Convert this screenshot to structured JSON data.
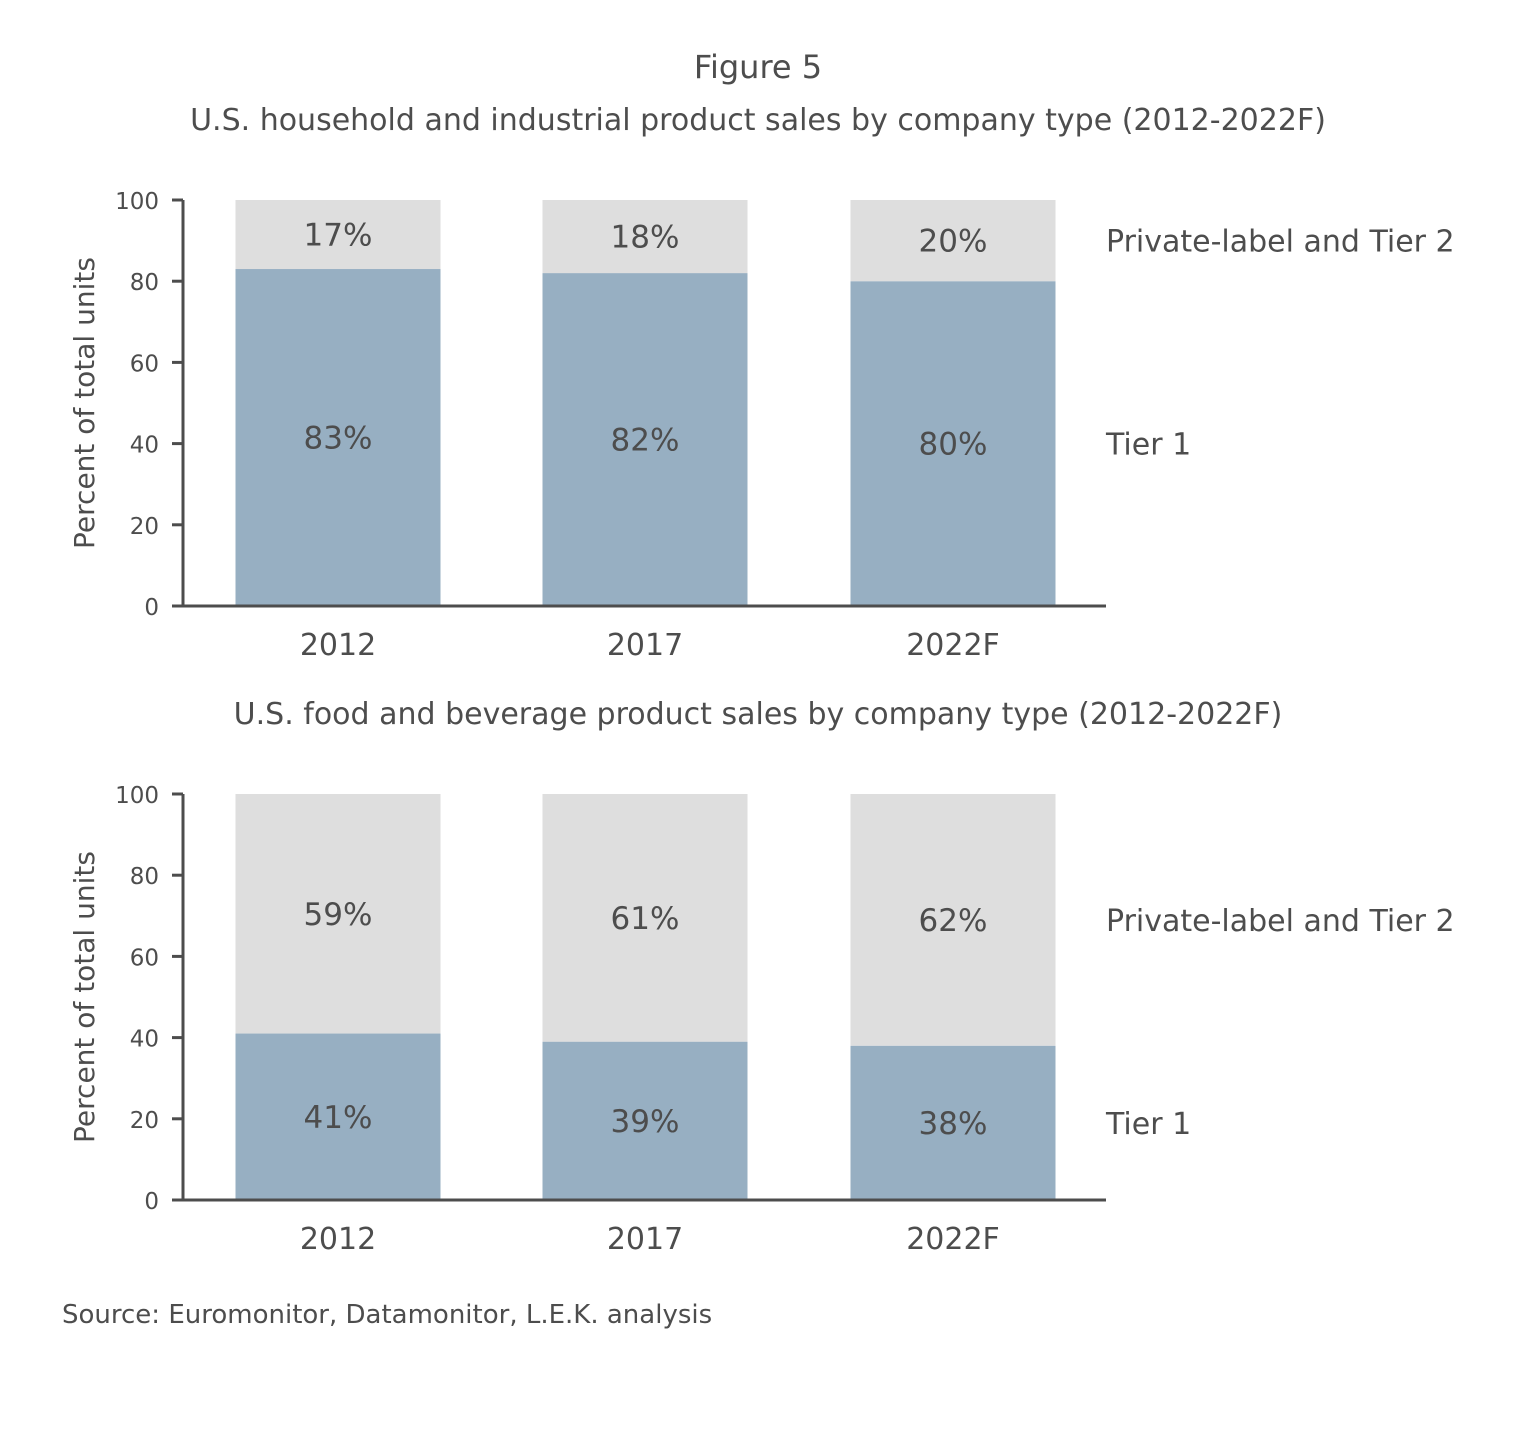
{
  "figure_label": "Figure 5",
  "source": "Source: Euromonitor, Datamonitor, L.E.K. analysis",
  "colors": {
    "tier1": "#97afc2",
    "private_label": "#dedede",
    "axis": "#4d4d4d",
    "text": "#4d4d4d"
  },
  "chart_data": [
    {
      "type": "bar",
      "stacked": true,
      "title": "U.S. household and industrial product sales by company type  (2012-2022F)",
      "ylabel": "Percent of total units",
      "xlabel": "",
      "ylim": [
        0,
        100
      ],
      "yticks": [
        0,
        20,
        40,
        60,
        80,
        100
      ],
      "categories": [
        "2012",
        "2017",
        "2022F"
      ],
      "series": [
        {
          "name": "Tier 1",
          "values": [
            83,
            82,
            80
          ],
          "labels": [
            "83%",
            "82%",
            "80%"
          ]
        },
        {
          "name": "Private-label and Tier 2",
          "values": [
            17,
            18,
            20
          ],
          "labels": [
            "17%",
            "18%",
            "20%"
          ]
        }
      ],
      "legend": "right"
    },
    {
      "type": "bar",
      "stacked": true,
      "title": "U.S. food and beverage product sales by company type  (2012-2022F)",
      "ylabel": "Percent of total units",
      "xlabel": "",
      "ylim": [
        0,
        100
      ],
      "yticks": [
        0,
        20,
        40,
        60,
        80,
        100
      ],
      "categories": [
        "2012",
        "2017",
        "2022F"
      ],
      "series": [
        {
          "name": "Tier 1",
          "values": [
            41,
            39,
            38
          ],
          "labels": [
            "41%",
            "39%",
            "38%"
          ]
        },
        {
          "name": "Private-label and Tier 2",
          "values": [
            59,
            61,
            62
          ],
          "labels": [
            "59%",
            "61%",
            "62%"
          ]
        }
      ],
      "legend": "right"
    }
  ]
}
